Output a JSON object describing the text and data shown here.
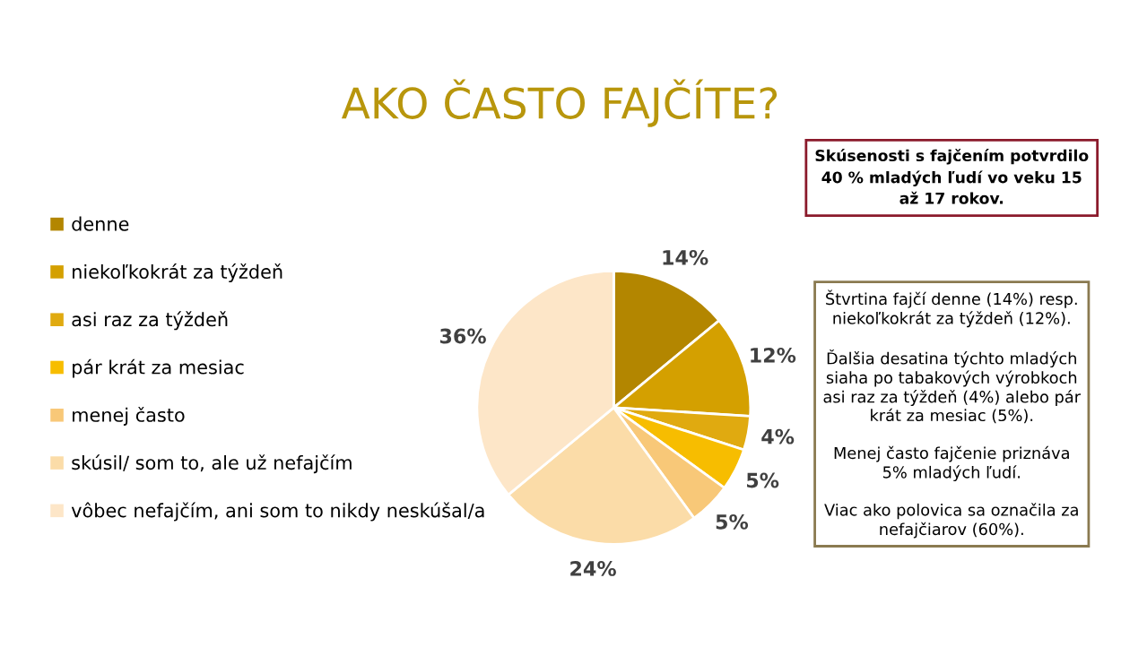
{
  "chart_data": {
    "type": "pie",
    "title": "AKO ČASTO FAJČÍTE?",
    "categories": [
      "denne",
      "niekoľkokrát za týždeň",
      "asi raz za týždeň",
      "pár krát za mesiac",
      "menej často",
      "skúsil/ som to, ale už nefajčím",
      "vôbec nefajčím, ani som to nikdy neskúšal/a"
    ],
    "values": [
      14,
      12,
      4,
      5,
      5,
      24,
      36
    ],
    "colors": [
      "#b38600",
      "#d4a000",
      "#e0aa10",
      "#f7bd00",
      "#f8c878",
      "#fbdca8",
      "#fde6c8"
    ],
    "value_labels": [
      "14%",
      "12%",
      "4%",
      "5%",
      "5%",
      "24%",
      "36%"
    ],
    "legend": "left",
    "annotations": [
      "Skúsenosti s fajčením potvrdilo\n40 % mladých ľudí vo veku 15\naž 17 rokov.",
      "Štvrtina fajčí denne (14%) resp.\nniekoľkokrát za týždeň (12%).",
      "Ďalšia desatina týchto mladých\nsiaha po tabakových výrobkoch\nasi raz za týždeň (4%) alebo pár\nkrát za mesiac (5%).",
      "Menej často fajčenie priznáva\n5% mladých ľudí.",
      "Viac ako polovica sa označila za\nnefajčiarov (60%)."
    ]
  }
}
